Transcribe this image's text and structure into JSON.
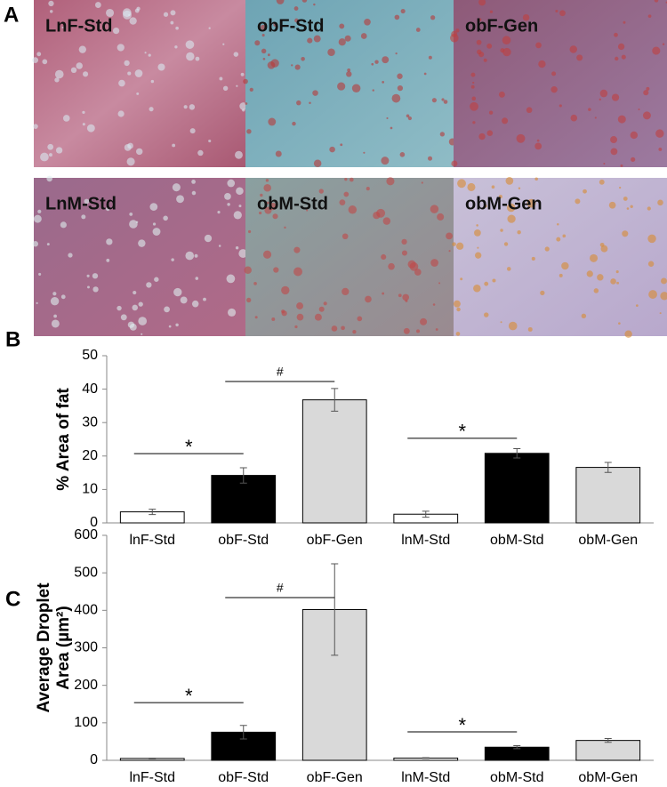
{
  "panel_a": {
    "label": "A",
    "images": [
      "LnF-Std",
      "obF-Std",
      "obF-Gen",
      "LnM-Std",
      "obM-Std",
      "obM-Gen"
    ]
  },
  "chart_data": [
    {
      "type": "bar",
      "panel_label": "B",
      "ylabel": [
        "% Area of fat"
      ],
      "categories": [
        "lnF-Std",
        "obF-Std",
        "obF-Gen",
        "lnM-Std",
        "obM-Std",
        "obM-Gen"
      ],
      "values": [
        3.3,
        14.2,
        36.8,
        2.6,
        20.8,
        16.6
      ],
      "errors": [
        0.8,
        2.3,
        3.4,
        0.9,
        1.4,
        1.5
      ],
      "colors": [
        "#ffffff",
        "#000000",
        "#d9d9d9",
        "#ffffff",
        "#000000",
        "#d9d9d9"
      ],
      "ylim": [
        0,
        50
      ],
      "yticks": [
        0,
        10,
        20,
        30,
        40,
        50
      ],
      "annotations": [
        {
          "text": "*",
          "between": [
            "lnF-Std",
            "obF-Std"
          ],
          "y": 20.7
        },
        {
          "text": "#",
          "between": [
            "obF-Std",
            "obF-Gen"
          ],
          "y": 42.3
        },
        {
          "text": "*",
          "between": [
            "lnM-Std",
            "obM-Std"
          ],
          "y": 25.3
        }
      ]
    },
    {
      "type": "bar",
      "panel_label": "C",
      "ylabel": [
        "Average Droplet",
        "Area (µm²)"
      ],
      "categories": [
        "lnF-Std",
        "obF-Std",
        "obF-Gen",
        "lnM-Std",
        "obM-Std",
        "obM-Gen"
      ],
      "values": [
        5,
        75,
        402,
        6,
        35,
        53
      ],
      "errors": [
        1,
        18,
        122,
        1,
        4,
        5
      ],
      "colors": [
        "#ffffff",
        "#000000",
        "#d9d9d9",
        "#ffffff",
        "#000000",
        "#d9d9d9"
      ],
      "ylim": [
        0,
        600
      ],
      "yticks": [
        0,
        100,
        200,
        300,
        400,
        500,
        600
      ],
      "annotations": [
        {
          "text": "*",
          "between": [
            "lnF-Std",
            "obF-Std"
          ],
          "y": 154
        },
        {
          "text": "#",
          "between": [
            "obF-Std",
            "obF-Gen"
          ],
          "y": 434
        },
        {
          "text": "*",
          "between": [
            "lnM-Std",
            "obM-Std"
          ],
          "y": 76
        }
      ]
    }
  ]
}
